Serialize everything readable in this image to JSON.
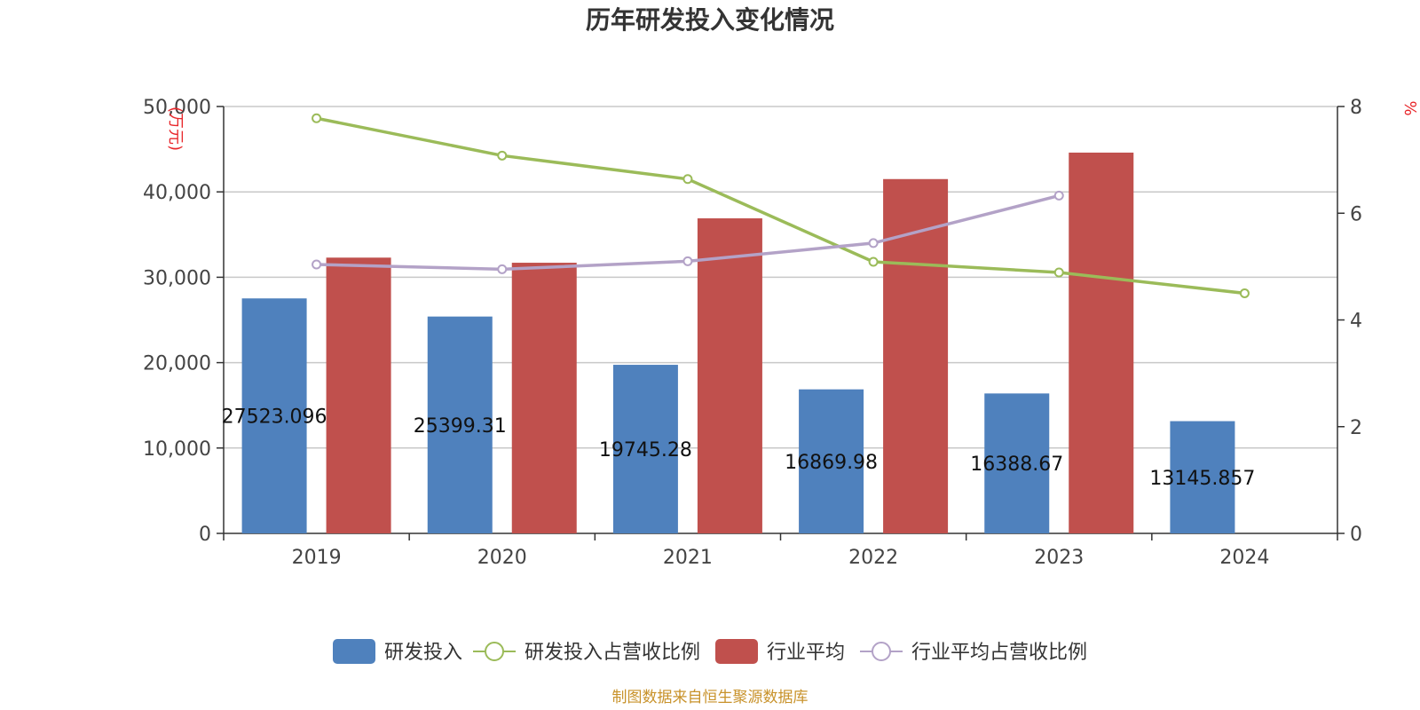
{
  "chart_data": {
    "type": "bar",
    "title": "历年研发投入变化情况",
    "categories": [
      "2019",
      "2020",
      "2021",
      "2022",
      "2023",
      "2024"
    ],
    "y_left": {
      "unit": "(万元)",
      "range": [
        0,
        50000
      ],
      "ticks": [
        "0",
        "10,000",
        "20,000",
        "30,000",
        "40,000",
        "50,000"
      ]
    },
    "y_right": {
      "unit": "%",
      "range": [
        0,
        8
      ],
      "ticks": [
        "0",
        "2",
        "4",
        "6",
        "8"
      ]
    },
    "grid": true,
    "legend_position": "bottom",
    "series": [
      {
        "name": "研发投入",
        "type": "bar",
        "axis": "left",
        "color": "#4f81bd",
        "values": [
          27523.096,
          25399.31,
          19745.28,
          16869.98,
          16388.67,
          13145.857
        ],
        "labels": [
          "27523.096",
          "25399.31",
          "19745.28",
          "16869.98",
          "16388.67",
          "13145.857"
        ]
      },
      {
        "name": "研发投入占营收比例",
        "type": "line",
        "axis": "right",
        "color": "#9bbb59",
        "values": [
          7.78,
          7.08,
          6.64,
          5.09,
          4.89,
          4.5
        ]
      },
      {
        "name": "行业平均",
        "type": "bar",
        "axis": "left",
        "color": "#c0504d",
        "values": [
          32300,
          31700,
          36900,
          41500,
          44600,
          null
        ]
      },
      {
        "name": "行业平均占营收比例",
        "type": "line",
        "axis": "right",
        "color": "#b3a2c7",
        "values": [
          5.04,
          4.95,
          5.1,
          5.44,
          6.33,
          null
        ]
      }
    ]
  },
  "source": "制图数据来自恒生聚源数据库"
}
